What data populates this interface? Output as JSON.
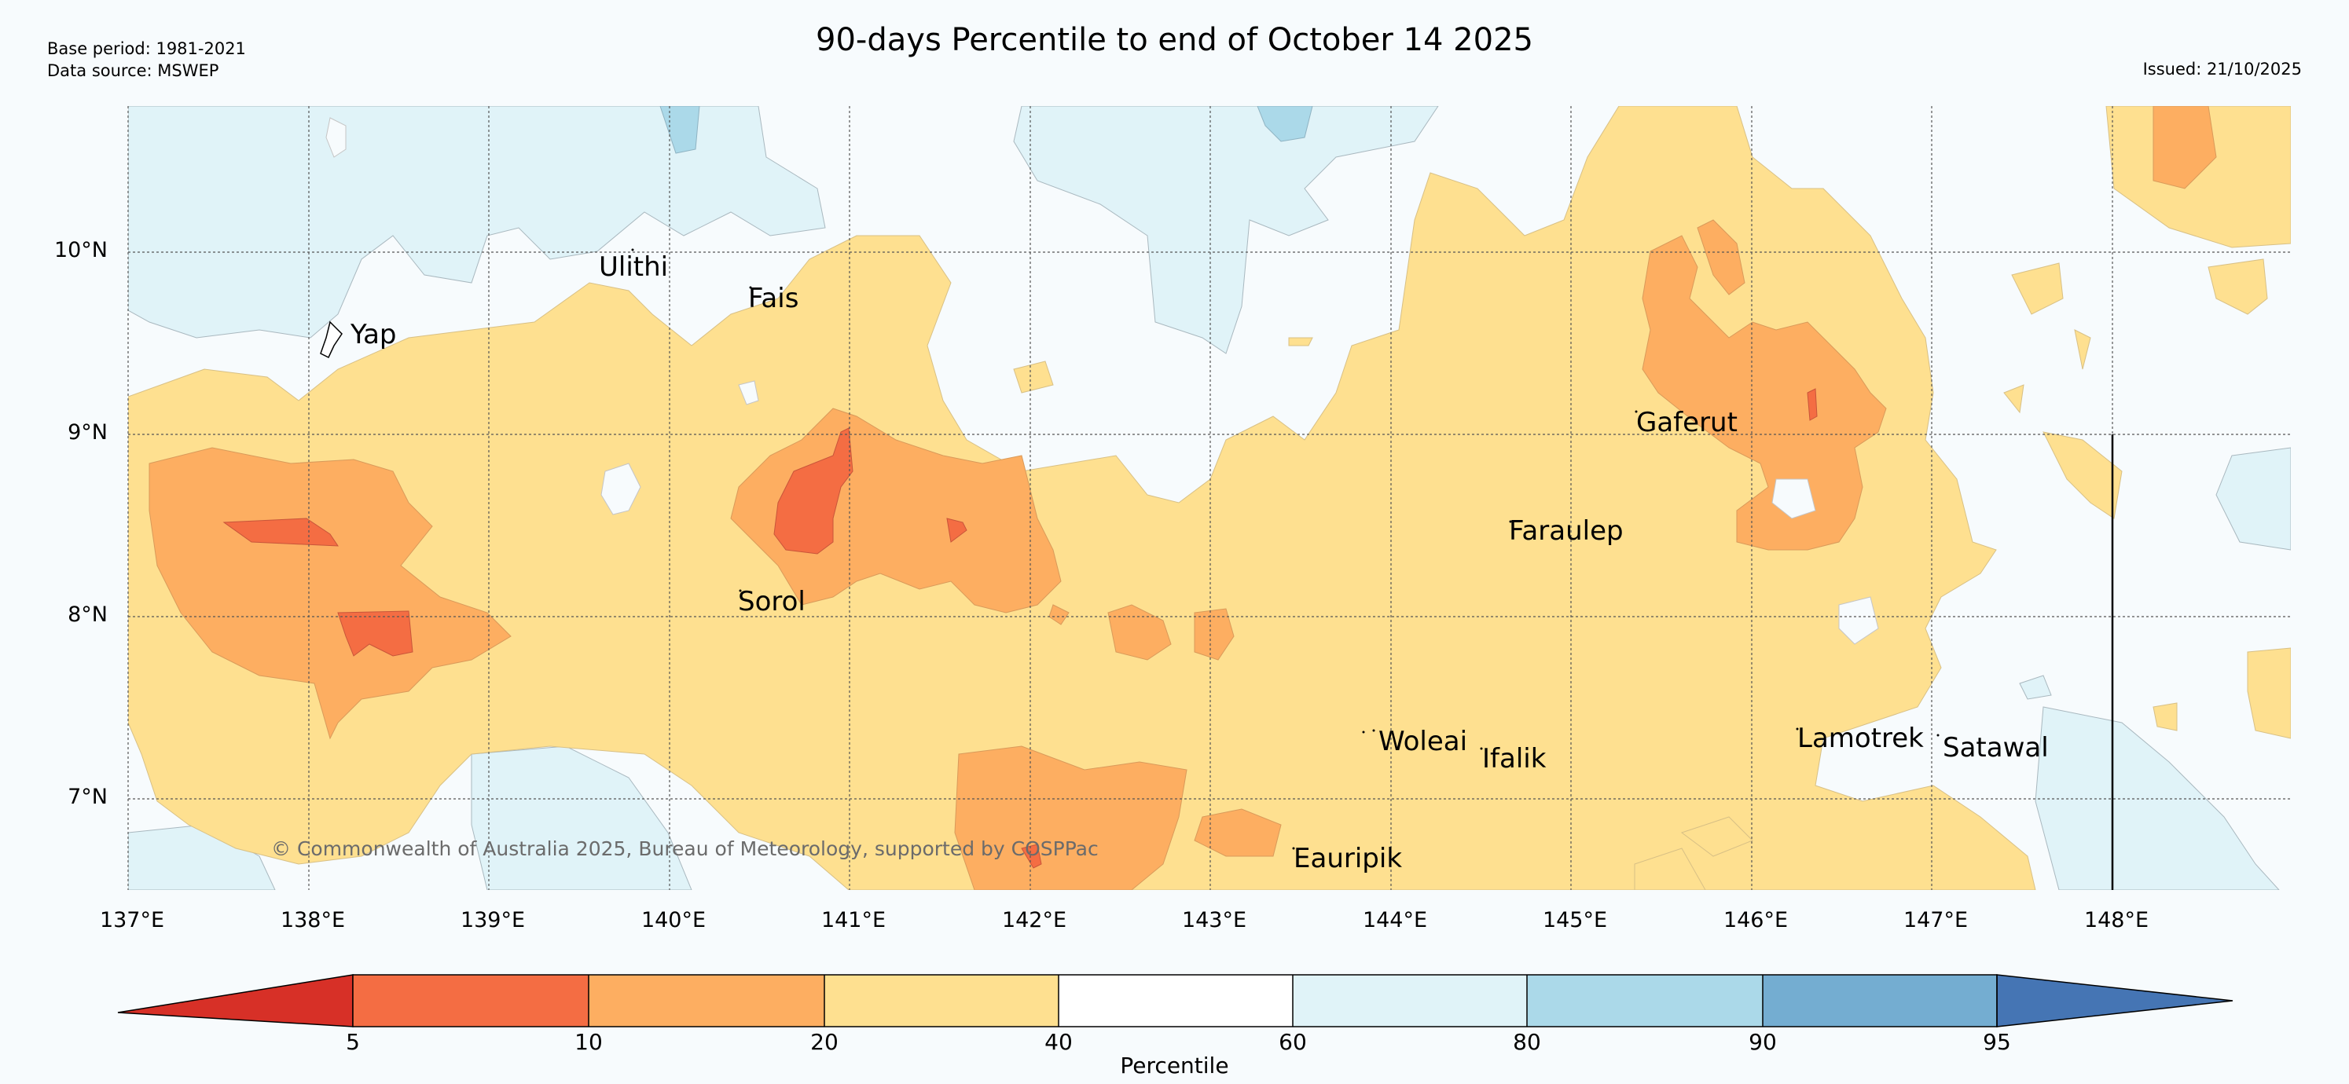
{
  "header": {
    "base_period": "Base period: 1981-2021",
    "data_source": "Data source: MSWEP",
    "title": "90-days Percentile to end of October 14 2025",
    "issued": "Issued: 21/10/2025"
  },
  "map": {
    "lat_labels": [
      "10°N",
      "9°N",
      "8°N",
      "7°N"
    ],
    "lon_labels": [
      "137°E",
      "138°E",
      "139°E",
      "140°E",
      "141°E",
      "142°E",
      "143°E",
      "144°E",
      "145°E",
      "146°E",
      "147°E",
      "148°E"
    ],
    "places": [
      "Yap",
      "Ulithi",
      "Fais",
      "Gaferut",
      "Faraulep",
      "Sorol",
      "Woleai",
      "Ifalik",
      "Lamotrek",
      "Satawal",
      "Eauripik"
    ],
    "copyright": "© Commonwealth of Australia 2025, Bureau of Meteorology, supported by COSPPac",
    "colors": {
      "below_5": "#d73027",
      "p5_10": "#f46d43",
      "p10_20": "#fdae61",
      "p20_40": "#fee090",
      "p40_60": "#ffffff",
      "p60_80": "#e0f3f8",
      "p80_90": "#abd9e9",
      "p90_95": "#74add1",
      "above_95": "#4575b4",
      "background": "#f7fbfd"
    }
  },
  "colorbar": {
    "ticks": [
      "5",
      "10",
      "20",
      "40",
      "60",
      "80",
      "90",
      "95"
    ],
    "label": "Percentile"
  }
}
